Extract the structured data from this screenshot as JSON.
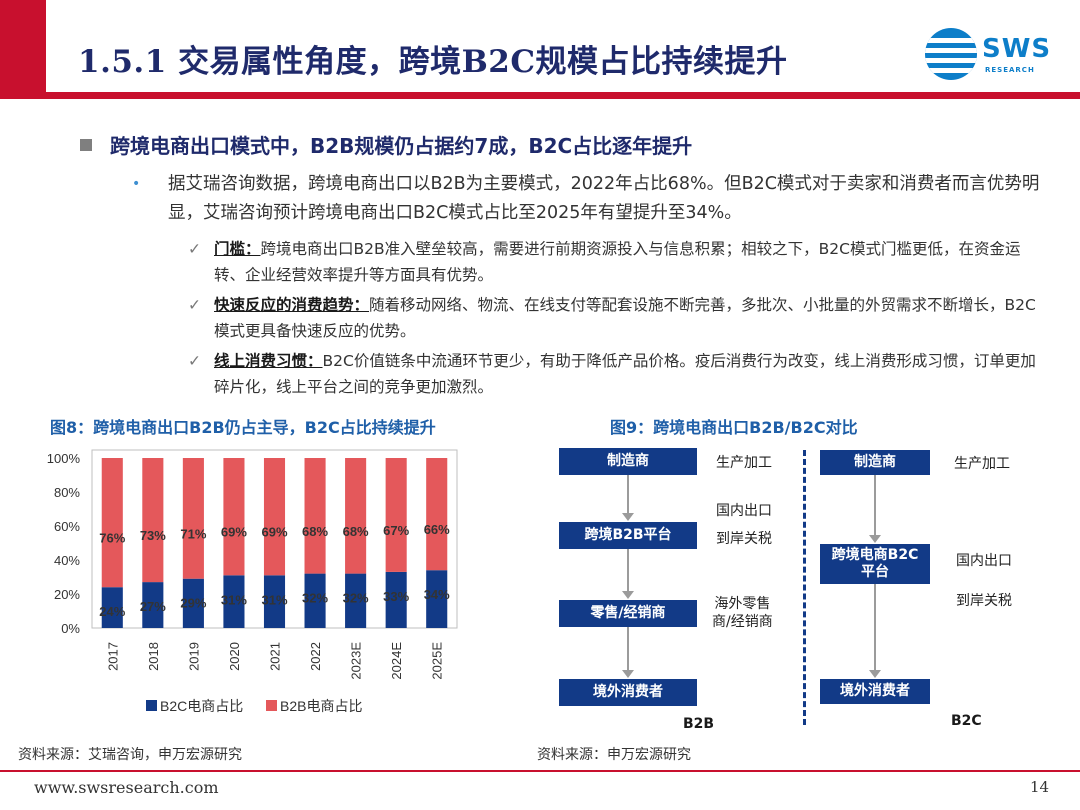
{
  "header": {
    "title": "1.5.1 交易属性角度，跨境B2C规模占比持续提升",
    "logo_text": "SWS",
    "logo_sub": "RESEARCH"
  },
  "headline": "跨境电商出口模式中，B2B规模仍占据约7成，B2C占比逐年提升",
  "paragraph": "据艾瑞咨询数据，跨境电商出口以B2B为主要模式，2022年占比68%。但B2C模式对于卖家和消费者而言优势明显，艾瑞咨询预计跨境电商出口B2C模式占比至2025年有望提升至34%。",
  "bullet_mark": "•",
  "check_mark": "✓",
  "points": [
    {
      "lead": "门槛：",
      "text": "跨境电商出口B2B准入壁垒较高，需要进行前期资源投入与信息积累；相较之下，B2C模式门槛更低，在资金运转、企业经营效率提升等方面具有优势。"
    },
    {
      "lead": "快速反应的消费趋势：",
      "text": "随着移动网络、物流、在线支付等配套设施不断完善，多批次、小批量的外贸需求不断增长，B2C模式更具备快速反应的优势。"
    },
    {
      "lead": "线上消费习惯：",
      "text": "B2C价值链条中流通环节更少，有助于降低产品价格。疫后消费行为改变，线上消费形成习惯，订单更加碎片化，线上平台之间的竞争更加激烈。"
    }
  ],
  "figure8": {
    "title": "图8：跨境电商出口B2B仍占主导，B2C占比持续提升",
    "source": "资料来源：艾瑞咨询，申万宏源研究"
  },
  "chart_data": {
    "type": "bar",
    "stacked": true,
    "categories": [
      "2017",
      "2018",
      "2019",
      "2020",
      "2021",
      "2022",
      "2023E",
      "2024E",
      "2025E"
    ],
    "series": [
      {
        "name": "B2C电商占比",
        "values": [
          24,
          27,
          29,
          31,
          31,
          32,
          32,
          33,
          34
        ],
        "labels": [
          "24%",
          "27%",
          "29%",
          "31%",
          "31%",
          "32%",
          "32%",
          "33%",
          "34%"
        ],
        "color": "#123a87"
      },
      {
        "name": "B2B电商占比",
        "values": [
          76,
          73,
          71,
          69,
          69,
          68,
          68,
          67,
          66
        ],
        "labels": [
          "76%",
          "73%",
          "71%",
          "69%",
          "69%",
          "68%",
          "68%",
          "67%",
          "66%"
        ],
        "color": "#e4585b"
      }
    ],
    "y_ticks": [
      "0%",
      "20%",
      "40%",
      "60%",
      "80%",
      "100%"
    ],
    "ylim": [
      0,
      100
    ],
    "grid": true,
    "legend": "bottom"
  },
  "figure9": {
    "title": "图9：跨境电商出口B2B/B2C对比",
    "source": "资料来源：申万宏源研究",
    "b2b": {
      "tag": "B2B",
      "boxes": [
        "制造商",
        "跨境B2B平台",
        "零售/经销商",
        "境外消费者"
      ],
      "labels": [
        "生产加工",
        "国内出口",
        "到岸关税",
        "海外零售\n商/经销商"
      ]
    },
    "b2c": {
      "tag": "B2C",
      "boxes": [
        "制造商",
        "跨境电商B2C\n平台",
        "境外消费者"
      ],
      "labels": [
        "生产加工",
        "国内出口",
        "到岸关税"
      ]
    }
  },
  "footer": {
    "url": "www.swsresearch.com",
    "page": "14"
  }
}
